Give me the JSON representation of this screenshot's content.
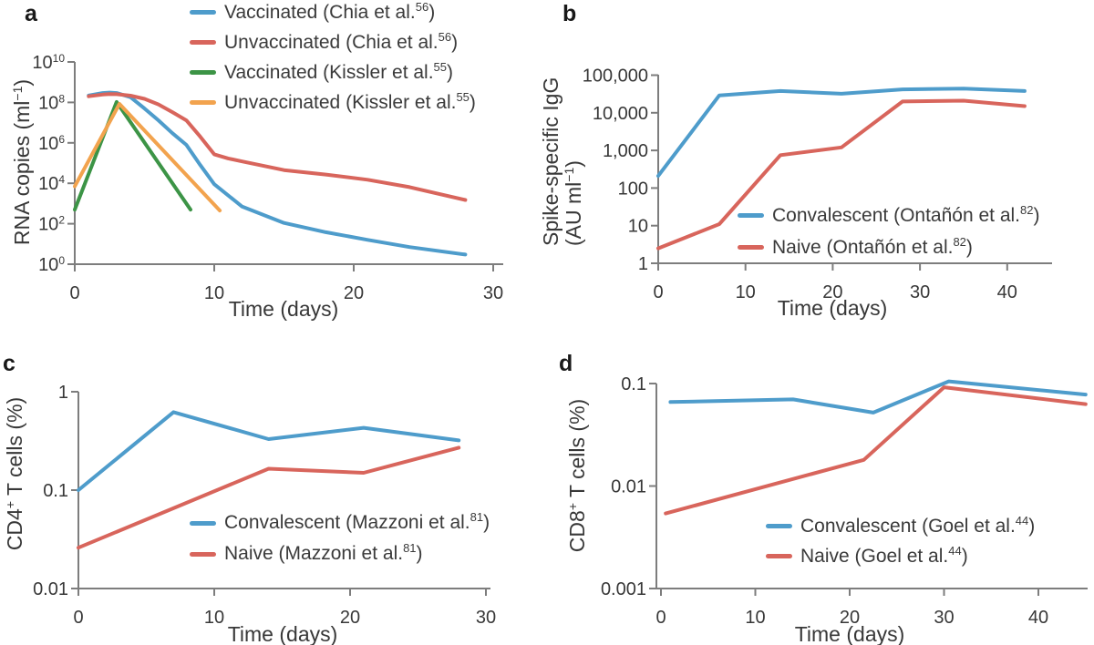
{
  "colors": {
    "blue": "#4E9CCB",
    "red": "#D8655C",
    "green": "#3C9446",
    "orange": "#F2A34E",
    "axis": "#7D7D7D",
    "text": "#383838"
  },
  "chart_data": [
    {
      "panel": "a",
      "type": "line",
      "y_scale": "log",
      "xlabel": "Time (days)",
      "ylabel_lines": [
        [
          {
            "t": "RNA copies (ml"
          },
          {
            "s": "−1"
          },
          {
            "t": ")"
          }
        ]
      ],
      "x_ticks": [
        0,
        10,
        20,
        30
      ],
      "y_ticks": [
        {
          "text": "10",
          "sup": "10",
          "value": 10000000000.0
        },
        {
          "text": "10",
          "sup": "8",
          "value": 100000000.0
        },
        {
          "text": "10",
          "sup": "6",
          "value": 1000000.0
        },
        {
          "text": "10",
          "sup": "4",
          "value": 10000.0
        },
        {
          "text": "10",
          "sup": "2",
          "value": 100.0
        },
        {
          "text": "10",
          "sup": "0",
          "value": 1
        }
      ],
      "xlim": [
        0,
        30.7
      ],
      "ylim": [
        1,
        10000000000.0
      ],
      "legend_position": "top-outside",
      "series": [
        {
          "key": "vaccinated-chia",
          "name": [
            {
              "t": "Vaccinated (Chia et al."
            },
            {
              "s": "56"
            },
            {
              "t": ")"
            }
          ],
          "color": "#4E9CCB",
          "x": [
            1,
            2,
            2.5,
            3,
            4,
            5,
            6,
            7,
            8,
            9,
            10,
            12,
            15,
            18,
            21,
            24,
            28
          ],
          "y": [
            220000000.0,
            290000000.0,
            305000000.0,
            290000000.0,
            180000000.0,
            50000000.0,
            13000000.0,
            3000000.0,
            800000.0,
            80000.0,
            9000.0,
            700.0,
            110.0,
            38,
            16,
            7,
            3
          ]
        },
        {
          "key": "unvaccinated-chia",
          "name": [
            {
              "t": "Unvaccinated (Chia et al."
            },
            {
              "s": "56"
            },
            {
              "t": ")"
            }
          ],
          "color": "#D8655C",
          "x": [
            1,
            2,
            2.5,
            3,
            4,
            5,
            6,
            7,
            8,
            9,
            10,
            11,
            12,
            15,
            18,
            21,
            24,
            28
          ],
          "y": [
            200000000.0,
            245000000.0,
            260000000.0,
            255000000.0,
            215000000.0,
            150000000.0,
            80000000.0,
            33000000.0,
            13000000.0,
            2000000.0,
            270000.0,
            170000.0,
            120000.0,
            45000.0,
            27000.0,
            15000.0,
            6500.0,
            1500.0
          ]
        },
        {
          "key": "vaccinated-kissler",
          "name": [
            {
              "t": "Vaccinated (Kissler et al."
            },
            {
              "s": "55"
            },
            {
              "t": ")"
            }
          ],
          "color": "#3C9446",
          "x": [
            0,
            3,
            8.3
          ],
          "y": [
            500.0,
            105000000.0,
            500.0
          ]
        },
        {
          "key": "unvaccinated-kissler",
          "name": [
            {
              "t": "Unvaccinated (Kissler et al."
            },
            {
              "s": "55"
            },
            {
              "t": ")"
            }
          ],
          "color": "#F2A34E",
          "x": [
            0,
            3.2,
            10.4
          ],
          "y": [
            7000.0,
            85000000.0,
            450.0
          ]
        }
      ]
    },
    {
      "panel": "b",
      "type": "line",
      "y_scale": "log",
      "xlabel": "Time (days)",
      "ylabel_lines": [
        [
          {
            "t": "Spike-specific IgG"
          }
        ],
        [
          {
            "t": "(AU ml"
          },
          {
            "s": "−1"
          },
          {
            "t": ")"
          }
        ]
      ],
      "x_ticks": [
        0,
        10,
        20,
        30,
        40
      ],
      "y_ticks": [
        {
          "text": "100,000",
          "value": 100000.0
        },
        {
          "text": "10,000",
          "value": 10000.0
        },
        {
          "text": "1,000",
          "value": 1000.0
        },
        {
          "text": "100",
          "value": 100
        },
        {
          "text": "10",
          "value": 10
        },
        {
          "text": "1",
          "value": 1
        }
      ],
      "xlim": [
        0,
        45.2
      ],
      "ylim": [
        1,
        100000.0
      ],
      "legend_position": "inside-bottom-right",
      "series": [
        {
          "key": "convalescent-ontanon",
          "name": [
            {
              "t": "Convalescent (Ontañón et al."
            },
            {
              "s": "82"
            },
            {
              "t": ")"
            }
          ],
          "color": "#4E9CCB",
          "x": [
            0,
            7,
            14,
            21,
            28,
            35,
            42
          ],
          "y": [
            210,
            29000.0,
            38000.0,
            32000.0,
            42000.0,
            44000.0,
            38000.0
          ]
        },
        {
          "key": "naive-ontanon",
          "name": [
            {
              "t": "Naive (Ontañón et al."
            },
            {
              "s": "82"
            },
            {
              "t": ")"
            }
          ],
          "color": "#D8655C",
          "x": [
            0,
            7,
            14,
            21,
            28,
            35,
            42
          ],
          "y": [
            2.5,
            11,
            750,
            1200,
            20000.0,
            21000.0,
            15000.0
          ]
        }
      ]
    },
    {
      "panel": "c",
      "type": "line",
      "y_scale": "log",
      "xlabel": "Time (days)",
      "ylabel_lines": [
        [
          {
            "t": "CD4"
          },
          {
            "s": "+"
          },
          {
            "t": " T cells (%)"
          }
        ]
      ],
      "x_ticks": [
        0,
        10,
        20,
        30
      ],
      "y_ticks": [
        {
          "text": "1",
          "value": 1
        },
        {
          "text": "0.1",
          "value": 0.1
        },
        {
          "text": "0.01",
          "value": 0.01
        }
      ],
      "xlim": [
        0,
        30.3
      ],
      "ylim": [
        0.01,
        1
      ],
      "legend_position": "inside-bottom-right",
      "series": [
        {
          "key": "convalescent-mazzoni",
          "name": [
            {
              "t": "Convalescent (Mazzoni et al."
            },
            {
              "s": "81"
            },
            {
              "t": ")"
            }
          ],
          "color": "#4E9CCB",
          "x": [
            0,
            7,
            14,
            21,
            28
          ],
          "y": [
            0.1,
            0.62,
            0.33,
            0.43,
            0.32
          ]
        },
        {
          "key": "naive-mazzoni",
          "name": [
            {
              "t": "Naive (Mazzoni et al."
            },
            {
              "s": "81"
            },
            {
              "t": ")"
            }
          ],
          "color": "#D8655C",
          "x": [
            0,
            14,
            21,
            28
          ],
          "y": [
            0.026,
            0.165,
            0.15,
            0.27
          ]
        }
      ]
    },
    {
      "panel": "d",
      "type": "line",
      "y_scale": "log",
      "xlabel": "Time (days)",
      "ylabel_lines": [
        [
          {
            "t": "CD8"
          },
          {
            "s": "+"
          },
          {
            "t": " T cells (%)"
          }
        ]
      ],
      "x_ticks": [
        0,
        10,
        20,
        30,
        40
      ],
      "y_ticks": [
        {
          "text": "0.1",
          "value": 0.1
        },
        {
          "text": "0.01",
          "value": 0.01
        },
        {
          "text": "0.001",
          "value": 0.001
        }
      ],
      "xlim": [
        0,
        45.2
      ],
      "ylim": [
        0.001,
        0.1
      ],
      "legend_position": "inside-bottom-right",
      "series": [
        {
          "key": "convalescent-goel",
          "name": [
            {
              "t": "Convalescent (Goel et al."
            },
            {
              "s": "44"
            },
            {
              "t": ")"
            }
          ],
          "color": "#4E9CCB",
          "x": [
            1,
            14,
            22.5,
            30.5,
            45
          ],
          "y": [
            0.066,
            0.07,
            0.052,
            0.105,
            0.078
          ]
        },
        {
          "key": "naive-goel",
          "name": [
            {
              "t": "Naive (Goel et al."
            },
            {
              "s": "44"
            },
            {
              "t": ")"
            }
          ],
          "color": "#D8655C",
          "x": [
            0.5,
            21.5,
            30,
            45
          ],
          "y": [
            0.0054,
            0.018,
            0.092,
            0.063
          ]
        }
      ]
    }
  ]
}
